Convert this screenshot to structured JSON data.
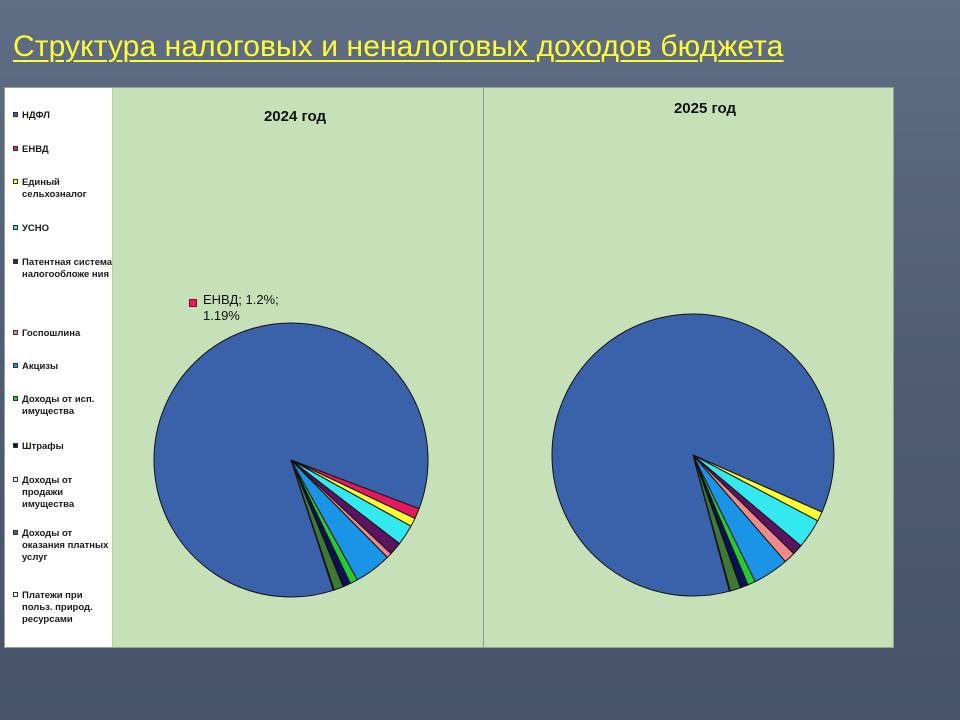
{
  "slide": {
    "title": "Структура налоговых и неналоговых доходов бюджета"
  },
  "chart_data": {
    "type": "pie",
    "categories": [
      "НДФЛ",
      "ЕНВД",
      "Единый сельхозналог",
      "УСНО",
      "Патентная система налогообложения",
      "Госпошлина",
      "Акцизы",
      "Доходы от исп. имущества",
      "Штрафы",
      "Доходы от продажи имущества",
      "Доходы от оказания платных услуг",
      "Платежи при польз. природ. ресурсами"
    ],
    "legend_labels": [
      "НДФЛ",
      "ЕНВД",
      "Единый сельхозналог",
      "УСНО",
      "Патентная система налогообложе ния",
      "Госпошлина",
      "Акцизы",
      "Доходы от исп. имущества",
      "Штрафы",
      "Доходы от продажи имущества",
      "Доходы от оказания платных услуг",
      "Платежи при польз. природ. ресурсами"
    ],
    "colors": [
      "#3a62aa",
      "#e8185e",
      "#ffff33",
      "#33e8ee",
      "#5a1460",
      "#f08a8a",
      "#1a94e6",
      "#22cc33",
      "#0a1060",
      "#f5f5d0",
      "#3e7a36",
      "#ffffff"
    ],
    "legend_placement": "left",
    "charts": [
      {
        "title": "2024 год",
        "values": [
          84.5,
          1.2,
          1.0,
          2.4,
          1.5,
          0.6,
          4.3,
          0.9,
          0.8,
          0.1,
          1.1,
          0.1
        ],
        "annotation": {
          "category": "ЕНВД",
          "line1": "ЕНВД; 1.2%;",
          "line2": "1.19%"
        }
      },
      {
        "title": "2025 год",
        "values": [
          85.8,
          0.0,
          1.1,
          3.4,
          1.2,
          1.3,
          4.1,
          0.9,
          0.8,
          0.1,
          1.2,
          0.1
        ]
      }
    ]
  }
}
